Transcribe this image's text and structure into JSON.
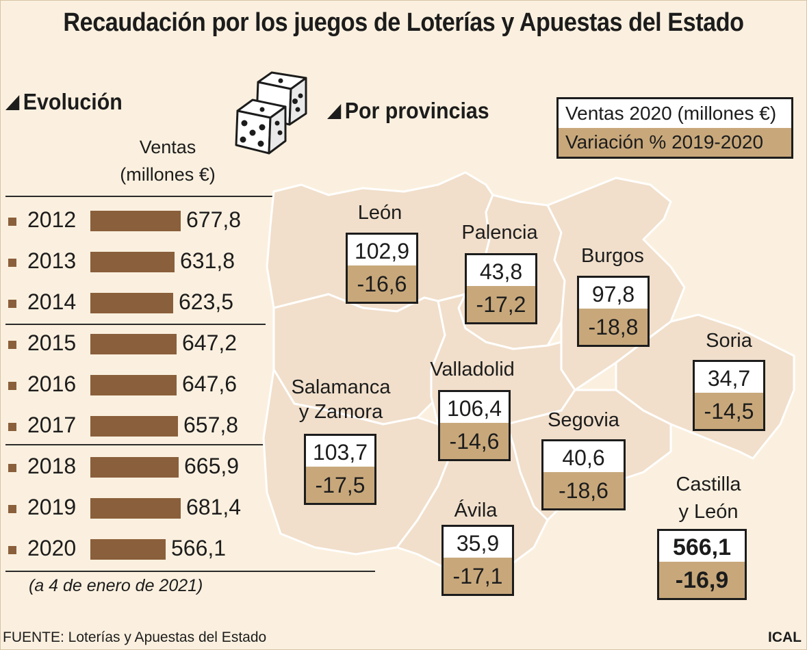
{
  "title": "Recaudación por los juegos de Loterías y Apuestas del Estado",
  "sections": {
    "evolucion": "Evolución",
    "provincias": "Por provincias"
  },
  "ventas_label": {
    "line1": "Ventas",
    "line2": "(millones €)"
  },
  "legend": {
    "ventas": "Ventas 2020 (millones €)",
    "variacion": "Variación % 2019-2020"
  },
  "note": "(a 4 de enero de 2021)",
  "source": "FUENTE: Loterías y Apuestas del Estado",
  "brand": "ICAL",
  "colors": {
    "bar": "#8a5f3b",
    "map_fill": "#f1dfcb",
    "map_border": "#ffffff",
    "pct_fill": "#c8a87b",
    "background": "#fbf0df"
  },
  "chart_data": {
    "type": "bar",
    "orientation": "horizontal",
    "title": "Evolución",
    "ylabel": "Ventas (millones €)",
    "categories": [
      "2012",
      "2013",
      "2014",
      "2015",
      "2016",
      "2017",
      "2018",
      "2019",
      "2020"
    ],
    "values": [
      677.8,
      631.8,
      623.5,
      647.2,
      647.6,
      657.8,
      665.9,
      681.4,
      566.1
    ],
    "value_labels": [
      "677,8",
      "631,8",
      "623,5",
      "647,2",
      "647,6",
      "657,8",
      "665,9",
      "681,4",
      "566,1"
    ]
  },
  "provinces": {
    "leon": {
      "name": "León",
      "ventas": "102,9",
      "variacion": "-16,6"
    },
    "palencia": {
      "name": "Palencia",
      "ventas": "43,8",
      "variacion": "-17,2"
    },
    "burgos": {
      "name": "Burgos",
      "ventas": "97,8",
      "variacion": "-18,8"
    },
    "soria": {
      "name": "Soria",
      "ventas": "34,7",
      "variacion": "-14,5"
    },
    "valladolid": {
      "name": "Valladolid",
      "ventas": "106,4",
      "variacion": "-14,6"
    },
    "salamanca_zamora": {
      "name_line1": "Salamanca",
      "name_line2": "y Zamora",
      "ventas": "103,7",
      "variacion": "-17,5"
    },
    "segovia": {
      "name": "Segovia",
      "ventas": "40,6",
      "variacion": "-18,6"
    },
    "avila": {
      "name": "Ávila",
      "ventas": "35,9",
      "variacion": "-17,1"
    },
    "total": {
      "name_line1": "Castilla",
      "name_line2": "y León",
      "ventas": "566,1",
      "variacion": "-16,9"
    }
  }
}
